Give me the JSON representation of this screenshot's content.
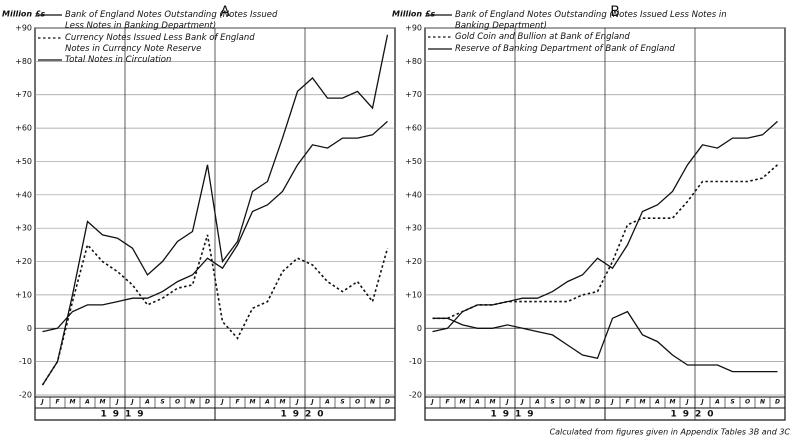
{
  "chart_data": [
    {
      "type": "line",
      "title": "A",
      "ylabel": "Million £s",
      "categories": [
        "J",
        "F",
        "M",
        "A",
        "M",
        "J",
        "J",
        "A",
        "S",
        "O",
        "N",
        "D",
        "J",
        "F",
        "M",
        "A",
        "M",
        "J",
        "J",
        "A",
        "S",
        "O",
        "N",
        "D"
      ],
      "x_groups": [
        "1919",
        "1920"
      ],
      "ylim": [
        -20,
        90
      ],
      "yticks": [
        {
          "value": 90,
          "label": "+90"
        },
        {
          "value": 80,
          "label": "+80"
        },
        {
          "value": 70,
          "label": "+70"
        },
        {
          "value": 60,
          "label": "+60"
        },
        {
          "value": 50,
          "label": "+50"
        },
        {
          "value": 40,
          "label": "+40"
        },
        {
          "value": 30,
          "label": "+30"
        },
        {
          "value": 20,
          "label": "+20"
        },
        {
          "value": 10,
          "label": "+10"
        },
        0,
        -10,
        -20
      ],
      "grid": true,
      "series": [
        {
          "name": "Bank of England Notes Outstanding (Notes Issued Less Notes in Banking Department)",
          "color": "#111",
          "dash": "solid",
          "values": [
            -1,
            0,
            5,
            7,
            7,
            8,
            9,
            9,
            11,
            14,
            16,
            21,
            18,
            25,
            35,
            37,
            41,
            49,
            55,
            54,
            57,
            57,
            58,
            62
          ]
        },
        {
          "name": "Currency Notes Issued Less Bank of England Notes in Currency Note Reserve",
          "color": "#111",
          "dash": "dotted",
          "values": [
            -17,
            -10,
            8,
            25,
            20,
            17,
            13,
            7,
            9,
            12,
            13,
            28,
            2,
            -3,
            6,
            8,
            17,
            21,
            19,
            14,
            11,
            14,
            8,
            24
          ]
        },
        {
          "name": "Total Notes in Circulation",
          "color": "#111",
          "dash": "solid",
          "values": [
            -17,
            -10,
            10,
            32,
            28,
            27,
            24,
            16,
            20,
            26,
            29,
            49,
            20,
            26,
            41,
            44,
            57,
            71,
            75,
            69,
            69,
            71,
            66,
            88
          ]
        }
      ]
    },
    {
      "type": "line",
      "title": "B",
      "ylabel": "Million £s",
      "categories": [
        "J",
        "F",
        "M",
        "A",
        "M",
        "J",
        "J",
        "A",
        "S",
        "O",
        "N",
        "D",
        "J",
        "F",
        "M",
        "A",
        "M",
        "J",
        "J",
        "A",
        "S",
        "O",
        "N",
        "D"
      ],
      "x_groups": [
        "1919",
        "1920"
      ],
      "ylim": [
        -20,
        90
      ],
      "yticks": [
        {
          "value": 90,
          "label": "+90"
        },
        {
          "value": 80,
          "label": "+80"
        },
        {
          "value": 70,
          "label": "+70"
        },
        {
          "value": 60,
          "label": "+60"
        },
        {
          "value": 50,
          "label": "+50"
        },
        {
          "value": 40,
          "label": "+40"
        },
        {
          "value": 30,
          "label": "+30"
        },
        {
          "value": 20,
          "label": "+20"
        },
        {
          "value": 10,
          "label": "+10"
        },
        0,
        -10,
        -20
      ],
      "grid": true,
      "series": [
        {
          "name": "Bank of England Notes Outstanding (Notes Issued Less Notes in Banking Department)",
          "color": "#111",
          "dash": "solid",
          "values": [
            -1,
            0,
            5,
            7,
            7,
            8,
            9,
            9,
            11,
            14,
            16,
            21,
            18,
            25,
            35,
            37,
            41,
            49,
            55,
            54,
            57,
            57,
            58,
            62
          ]
        },
        {
          "name": "Gold Coin and Bullion at Bank of England",
          "color": "#111",
          "dash": "dotted",
          "values": [
            3,
            3,
            5,
            7,
            7,
            8,
            8,
            8,
            8,
            8,
            10,
            11,
            20,
            31,
            33,
            33,
            33,
            38,
            44,
            44,
            44,
            44,
            45,
            49
          ]
        },
        {
          "name": "Reserve of Banking Department of Bank of England",
          "color": "#111",
          "dash": "solid",
          "values": [
            3,
            3,
            1,
            0,
            0,
            1,
            0,
            -1,
            -2,
            -5,
            -8,
            -9,
            3,
            5,
            -2,
            -4,
            -8,
            -11,
            -11,
            -11,
            -13,
            -13,
            -13,
            -13
          ]
        }
      ]
    }
  ],
  "note": "Calculated from figures given in Appendix Tables 3B and 3C"
}
